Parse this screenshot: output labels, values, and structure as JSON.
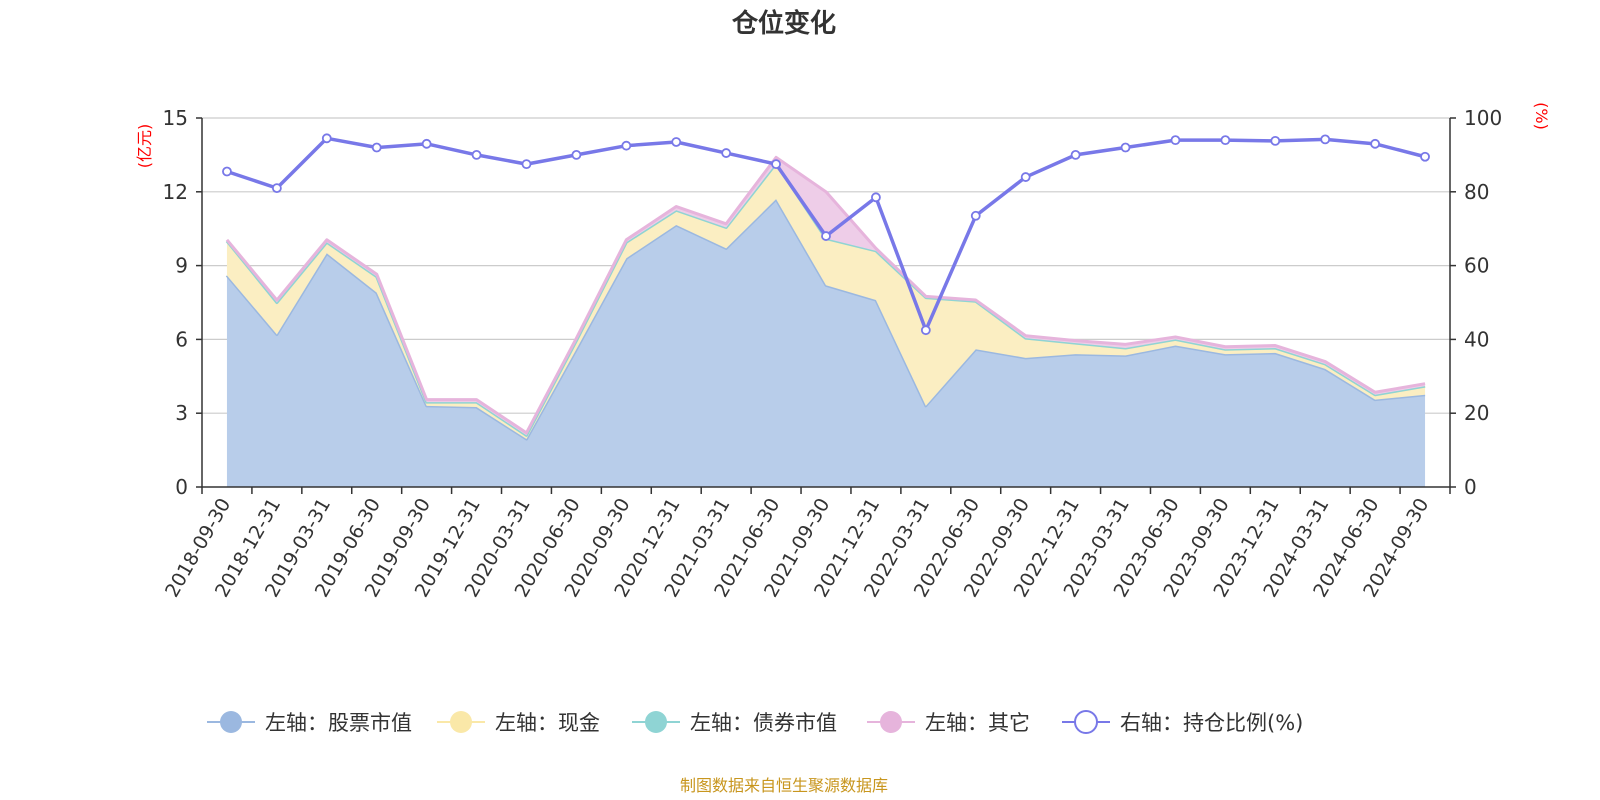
{
  "chart_data": {
    "type": "area",
    "title": "仓位变化",
    "left_axis_unit": "(亿元)",
    "right_axis_unit": "(%)",
    "ylim_left": [
      0,
      15
    ],
    "yticks_left": [
      "0",
      "3",
      "6",
      "9",
      "12",
      "15"
    ],
    "ylim_right": [
      0,
      100
    ],
    "yticks_right": [
      "0",
      "20",
      "40",
      "60",
      "80",
      "100"
    ],
    "categories": [
      "2018-09-30",
      "2018-12-31",
      "2019-03-31",
      "2019-06-30",
      "2019-09-30",
      "2019-12-31",
      "2020-03-31",
      "2020-06-30",
      "2020-09-30",
      "2020-12-31",
      "2021-03-31",
      "2021-06-30",
      "2021-09-30",
      "2021-12-31",
      "2022-03-31",
      "2022-06-30",
      "2022-09-30",
      "2022-12-31",
      "2023-03-31",
      "2023-06-30",
      "2023-09-30",
      "2023-12-31",
      "2024-03-31",
      "2024-06-30",
      "2024-09-30"
    ],
    "series": [
      {
        "name": "左轴：股票市值",
        "axis": "left",
        "kind": "stacked-area",
        "color": "#9bb8e0",
        "fill": "#b8cdea",
        "values": [
          8.6,
          6.2,
          9.5,
          7.9,
          3.3,
          3.25,
          1.95,
          5.6,
          9.3,
          10.65,
          9.7,
          11.7,
          8.2,
          7.6,
          3.3,
          5.6,
          5.25,
          5.4,
          5.35,
          5.75,
          5.4,
          5.45,
          4.8,
          3.55,
          3.75
        ]
      },
      {
        "name": "左轴：现金",
        "axis": "left",
        "kind": "stacked-area",
        "color": "#fae8a8",
        "fill": "#fbeec2",
        "values": [
          1.4,
          1.3,
          0.45,
          0.65,
          0.15,
          0.2,
          0.15,
          0.35,
          0.65,
          0.6,
          0.85,
          1.45,
          1.9,
          2.0,
          4.4,
          1.95,
          0.8,
          0.45,
          0.3,
          0.25,
          0.2,
          0.2,
          0.2,
          0.2,
          0.35
        ]
      },
      {
        "name": "左轴：债券市值",
        "axis": "left",
        "kind": "stacked-area",
        "color": "#8fd4d4",
        "fill": "#bfe6e6",
        "values": [
          0,
          0,
          0,
          0,
          0,
          0,
          0,
          0,
          0,
          0,
          0,
          0,
          0,
          0,
          0,
          0,
          0,
          0,
          0,
          0,
          0,
          0,
          0,
          0,
          0
        ]
      },
      {
        "name": "左轴：其它",
        "axis": "left",
        "kind": "stacked-area",
        "color": "#e6b4dc",
        "fill": "#eecde8",
        "values": [
          0.05,
          0.1,
          0.1,
          0.1,
          0.1,
          0.1,
          0.1,
          0.1,
          0.1,
          0.15,
          0.15,
          0.25,
          1.9,
          0.1,
          0.05,
          0.05,
          0.1,
          0.1,
          0.15,
          0.1,
          0.1,
          0.1,
          0.1,
          0.1,
          0.1
        ]
      },
      {
        "name": "右轴：持仓比例(%)",
        "axis": "right",
        "kind": "line",
        "color": "#7878e8",
        "values": [
          85.5,
          81,
          94.5,
          92,
          93,
          90,
          87.5,
          90,
          92.5,
          93.5,
          90.5,
          87.5,
          68,
          78.5,
          42.5,
          73.5,
          84,
          90,
          92,
          94,
          94,
          93.8,
          94.2,
          93,
          89.5
        ]
      }
    ],
    "legend_position": "bottom",
    "grid": true
  },
  "footer": {
    "source": "制图数据来自恒生聚源数据库"
  }
}
